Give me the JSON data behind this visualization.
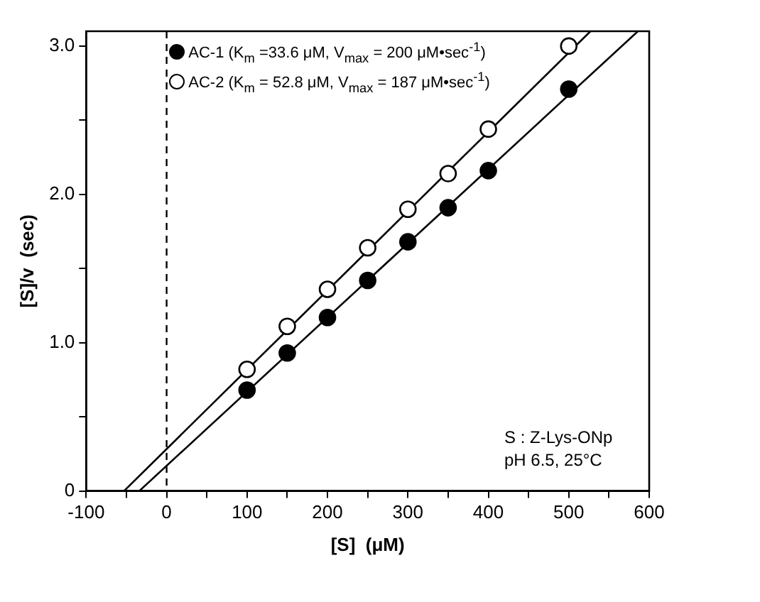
{
  "chart_data": {
    "type": "scatter",
    "xlabel": "[S]  (μM)",
    "ylabel": "[S]/v  (sec)",
    "xlim": [
      -100,
      600
    ],
    "xticks": [
      -100,
      {
        "value": -50,
        "label": null
      },
      0,
      {
        "value": 50,
        "label": null
      },
      100,
      {
        "value": 150,
        "label": null
      },
      200,
      {
        "value": 250,
        "label": null
      },
      300,
      {
        "value": 350,
        "label": null
      },
      400,
      {
        "value": 450,
        "label": null
      },
      500,
      {
        "value": 550,
        "label": null
      },
      600
    ],
    "ylim": [
      0,
      3.1
    ],
    "yticks": [
      0,
      {
        "value": 0.5,
        "label": null
      },
      {
        "value": 1,
        "label": "1.0"
      },
      {
        "value": 1.5,
        "label": null
      },
      {
        "value": 2,
        "label": "2.0"
      },
      {
        "value": 2.5,
        "label": null
      },
      {
        "value": 3,
        "label": "3.0"
      }
    ],
    "grid": false,
    "legend": "top left",
    "marker": "circle",
    "series": [
      {
        "name": "AC-1 (K$_{m}$ =33.6 μM, V$_{max}$ = 200 μM•sec$^{-1}$)",
        "color": "#000000",
        "x": [
          100,
          150,
          200,
          250,
          300,
          350,
          400,
          500
        ],
        "values": [
          0.68,
          0.93,
          1.17,
          1.42,
          1.68,
          1.91,
          2.16,
          2.71
        ]
      },
      {
        "name": "AC-2 (K$_{m}$ = 52.8 μM, V$_{max}$ = 187 μM•sec$^{-1}$)",
        "color": "#ffffff",
        "x": [
          100,
          150,
          200,
          250,
          300,
          350,
          400,
          500
        ],
        "values": [
          0.82,
          1.11,
          1.36,
          1.64,
          1.9,
          2.14,
          2.44,
          3.0
        ]
      },
      {
        "type": "line",
        "color": "#000000",
        "marker": "none",
        "x": [
          -34,
          586
        ],
        "values": [
          0,
          3.1
        ]
      },
      {
        "type": "line",
        "color": "#000000",
        "marker": "none",
        "x": [
          -53,
          527
        ],
        "values": [
          0,
          3.1
        ]
      }
    ],
    "ref_lines": [
      {
        "axis": "x",
        "value": 0,
        "line_style": "dashed",
        "color": "#000000"
      }
    ],
    "annotations": [
      "S : Z-Lys-ONp",
      "pH 6.5, 25°C"
    ]
  }
}
